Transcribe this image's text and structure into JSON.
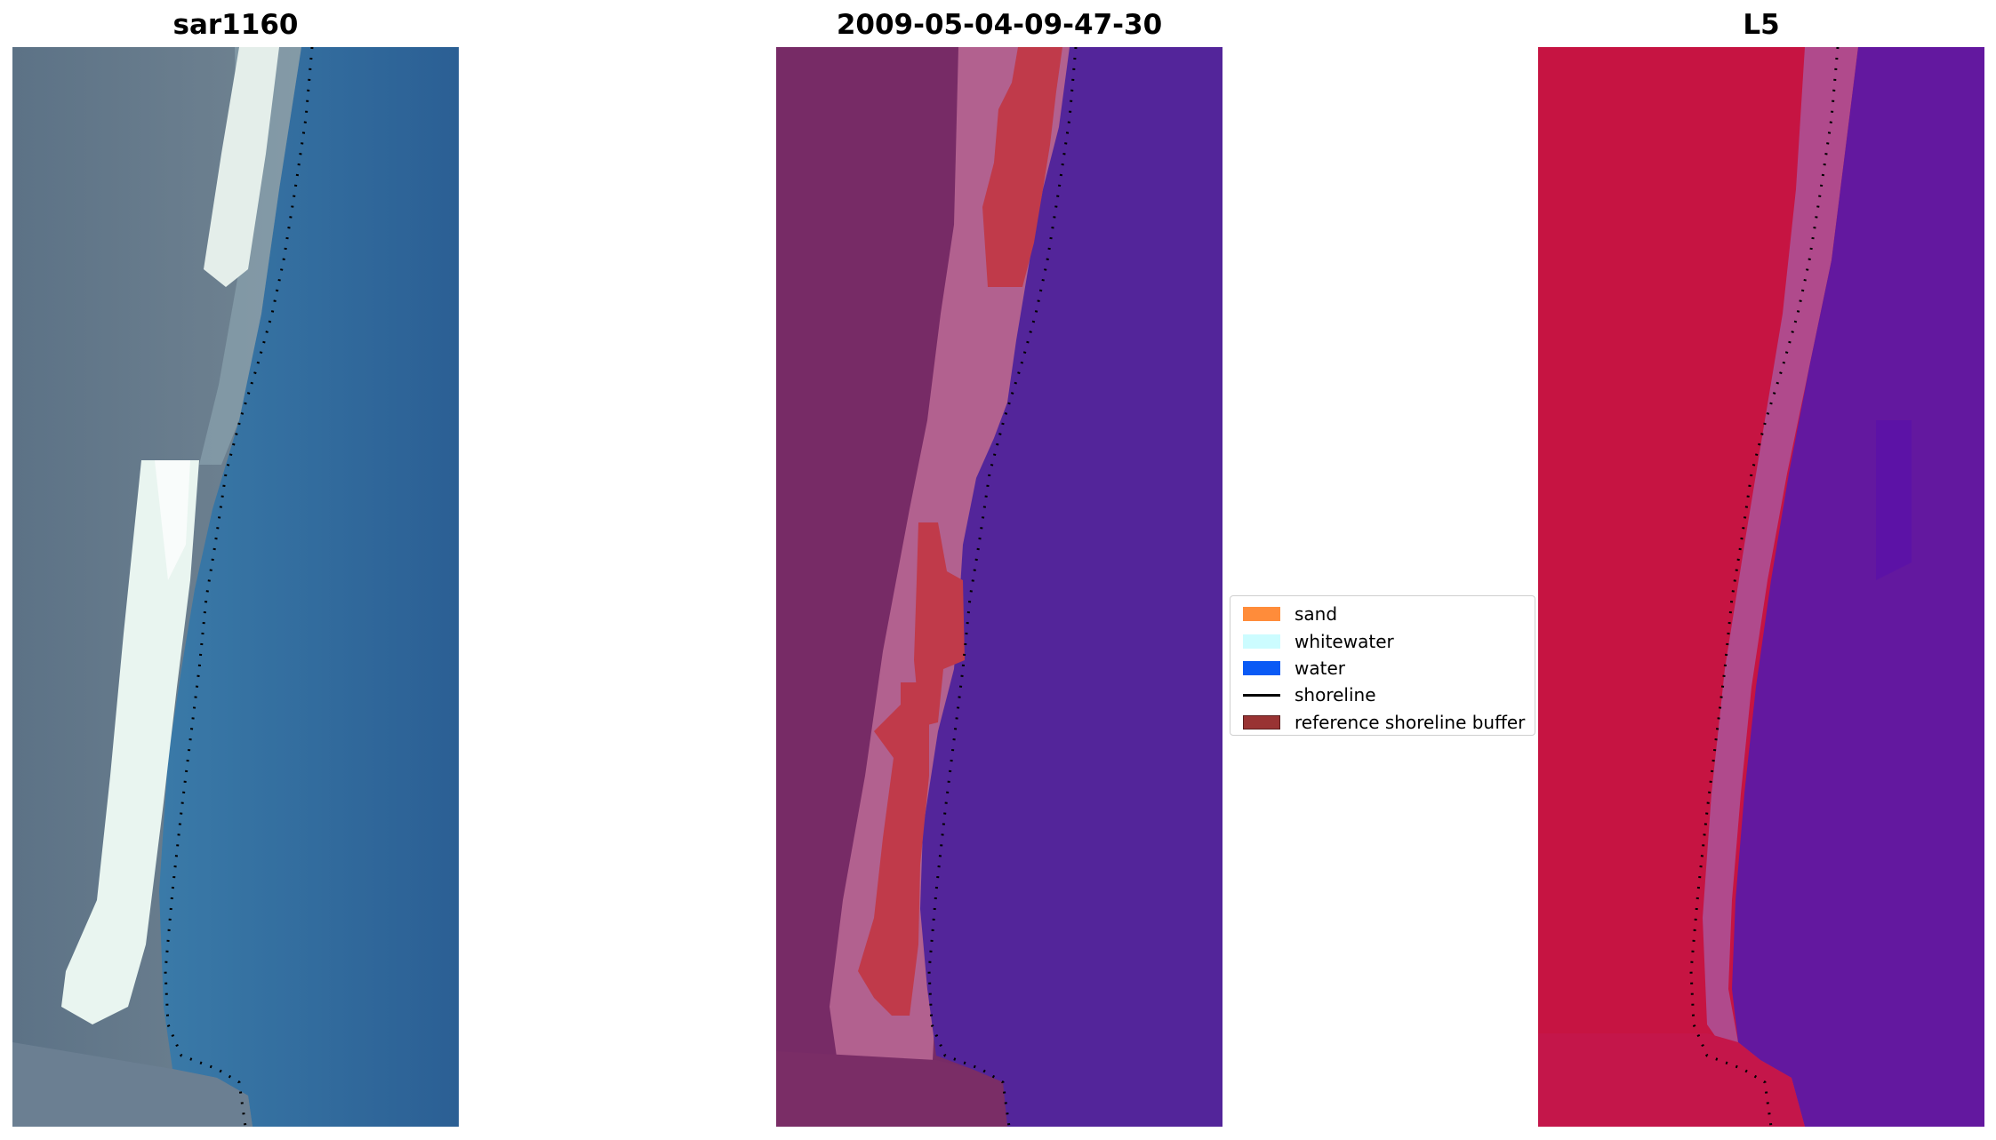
{
  "panels": [
    {
      "title": "sar1160"
    },
    {
      "title": "2009-05-04-09-47-30"
    },
    {
      "title": "L5"
    }
  ],
  "legend": {
    "items": [
      {
        "label": "sand",
        "color": "#ff8c3a",
        "kind": "patch"
      },
      {
        "label": "whitewater",
        "color": "#ccfcff",
        "kind": "patch"
      },
      {
        "label": "water",
        "color": "#0a5af5",
        "kind": "patch"
      },
      {
        "label": "shoreline",
        "color": "#000000",
        "kind": "line"
      },
      {
        "label": "reference shoreline buffer",
        "color": "#993333",
        "kind": "patch"
      }
    ]
  },
  "colors": {
    "rgb_land": "#5e7388",
    "rgb_water": "#2e6c9e",
    "rgb_whitewater": "#e8f4f0",
    "class_land": "#7a2d66",
    "class_buffer_pink": "#b06090",
    "class_sand_red": "#c03a4a",
    "class_water": "#532599",
    "mndwi_land": "#c8103e",
    "mndwi_water": "#62179f",
    "mndwi_transition": "#b04a8c"
  }
}
